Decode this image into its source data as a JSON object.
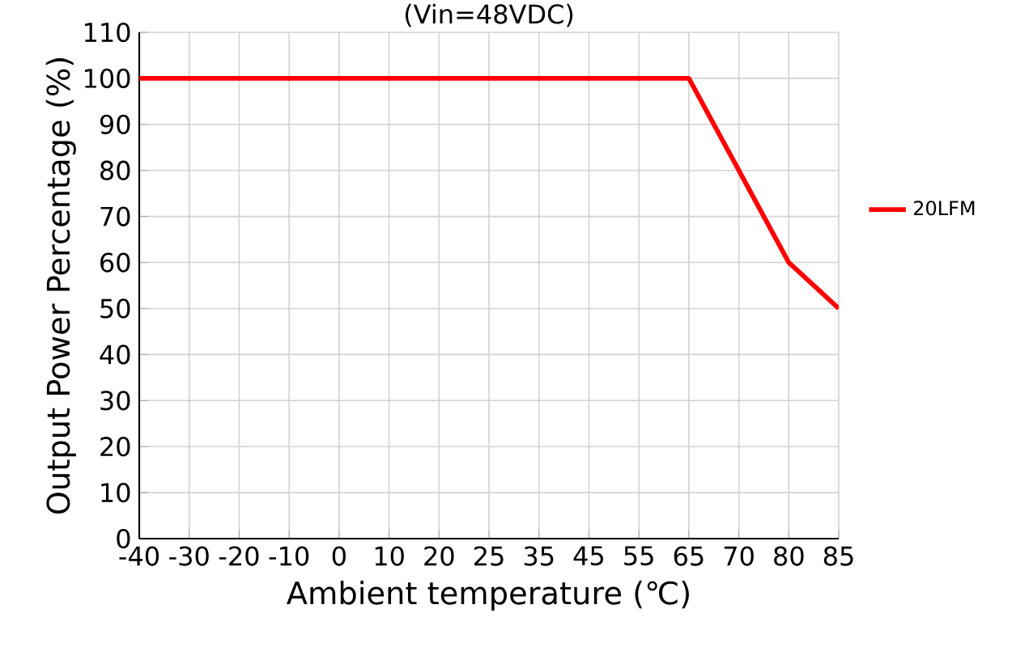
{
  "chart_data": {
    "type": "line",
    "title": "(Vin=48VDC)",
    "xlabel": "Ambient temperature (℃)",
    "ylabel": "Output Power Percentage (%)",
    "categories": [
      "-40",
      "-30",
      "-20",
      "-10",
      "0",
      "10",
      "20",
      "25",
      "35",
      "45",
      "55",
      "65",
      "70",
      "80",
      "85"
    ],
    "series": [
      {
        "name": "20LFM",
        "color": "#ff0000",
        "values": [
          100,
          100,
          100,
          100,
          100,
          100,
          100,
          100,
          100,
          100,
          100,
          100,
          80,
          60,
          50
        ]
      }
    ],
    "ylim": [
      0,
      110
    ],
    "yticks": [
      0,
      10,
      20,
      30,
      40,
      50,
      60,
      70,
      80,
      90,
      100,
      110
    ],
    "grid": true,
    "legend": "right",
    "marker": "none",
    "line_style": "solid"
  }
}
